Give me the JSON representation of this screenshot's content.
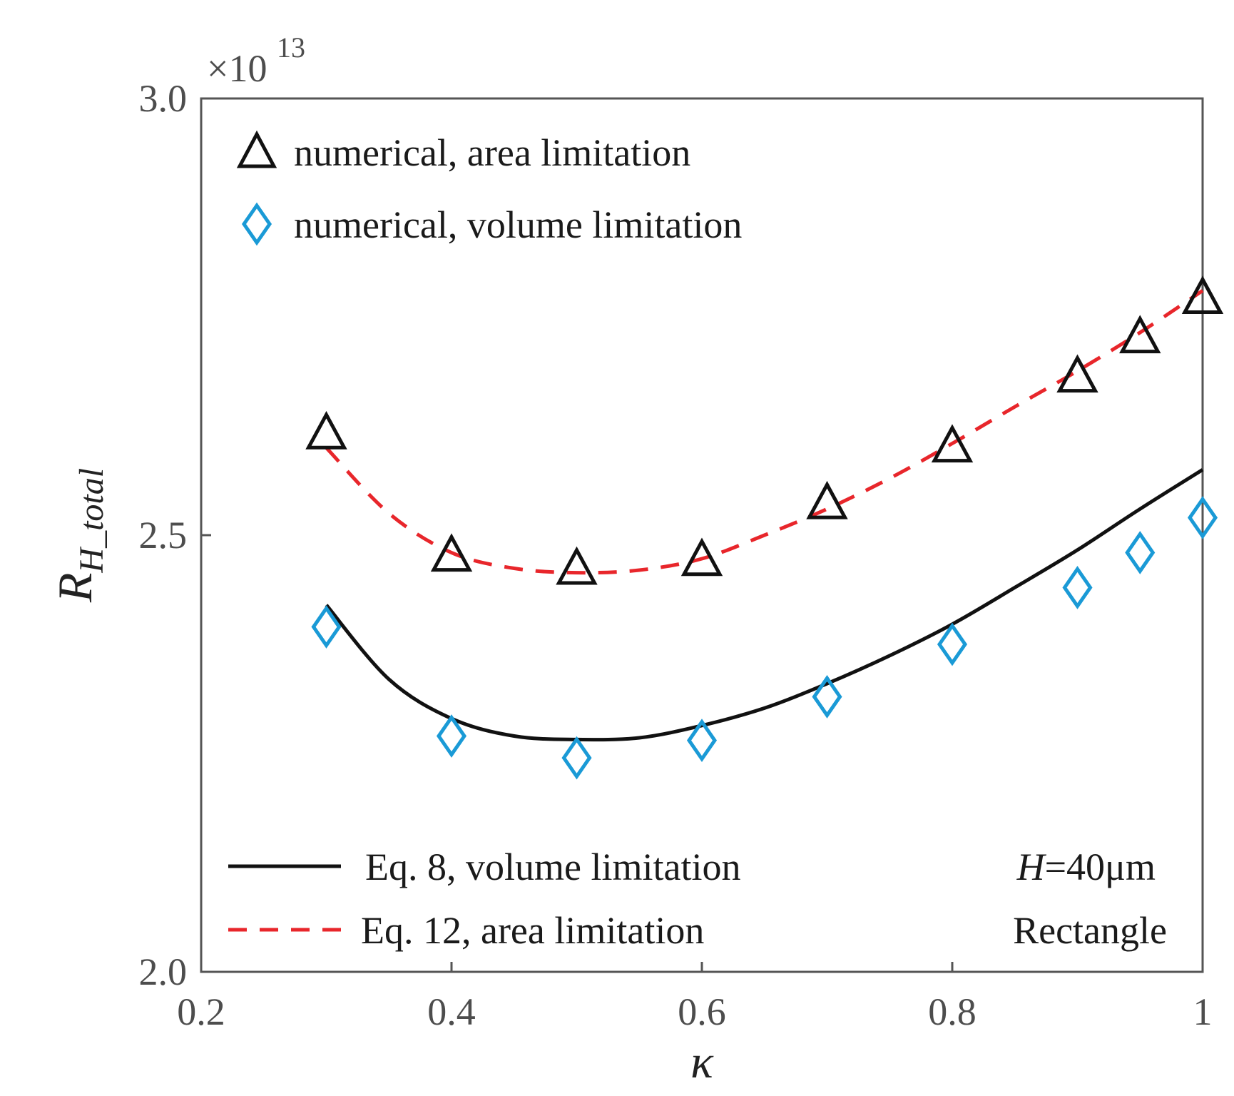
{
  "chart_data": {
    "type": "scatter",
    "title": "",
    "xlabel": "κ",
    "ylabel_main": "R",
    "ylabel_sub": "H_total",
    "exponent_label": "×10",
    "exponent_power": "13",
    "xlim": [
      0.2,
      1.0
    ],
    "ylim": [
      2.0,
      3.0
    ],
    "xticks": [
      0.2,
      0.4,
      0.6,
      0.8,
      1.0
    ],
    "xtick_labels": [
      "0.2",
      "0.4",
      "0.6",
      "0.8",
      "1"
    ],
    "yticks": [
      2.0,
      2.5,
      3.0
    ],
    "ytick_labels": [
      "2.0",
      "2.5",
      "3.0"
    ],
    "grid": false,
    "series": [
      {
        "name": "numerical, area limitation",
        "kind": "markers",
        "marker": "triangle",
        "color": "#111111",
        "x": [
          0.3,
          0.4,
          0.5,
          0.6,
          0.7,
          0.8,
          0.9,
          0.95,
          1.0
        ],
        "y": [
          2.615,
          2.475,
          2.46,
          2.47,
          2.535,
          2.6,
          2.68,
          2.725,
          2.77
        ]
      },
      {
        "name": "numerical, volume limitation",
        "kind": "markers",
        "marker": "diamond",
        "color": "#1a9ad6",
        "x": [
          0.3,
          0.4,
          0.5,
          0.6,
          0.7,
          0.8,
          0.9,
          0.95,
          1.0
        ],
        "y": [
          2.395,
          2.27,
          2.245,
          2.265,
          2.315,
          2.375,
          2.44,
          2.48,
          2.52
        ]
      },
      {
        "name": "Eq. 8, volume limitation",
        "kind": "line",
        "style": "solid",
        "color": "#111111",
        "x": [
          0.3,
          0.35,
          0.4,
          0.45,
          0.5,
          0.55,
          0.6,
          0.65,
          0.7,
          0.75,
          0.8,
          0.85,
          0.9,
          0.95,
          1.0
        ],
        "y": [
          2.42,
          2.335,
          2.29,
          2.27,
          2.266,
          2.268,
          2.282,
          2.302,
          2.33,
          2.362,
          2.398,
          2.44,
          2.483,
          2.53,
          2.575
        ]
      },
      {
        "name": "Eq. 12, area limitation",
        "kind": "line",
        "style": "dashed",
        "color": "#e8262b",
        "x": [
          0.3,
          0.35,
          0.4,
          0.45,
          0.5,
          0.55,
          0.6,
          0.65,
          0.7,
          0.75,
          0.8,
          0.85,
          0.9,
          0.95,
          1.0
        ],
        "y": [
          2.6,
          2.525,
          2.48,
          2.462,
          2.457,
          2.46,
          2.473,
          2.5,
          2.53,
          2.565,
          2.605,
          2.647,
          2.688,
          2.732,
          2.78
        ]
      }
    ],
    "annotation": {
      "h_italic": "H",
      "h_rest": "=40μm",
      "shape": "Rectangle"
    },
    "legend_placement": [
      "top-left",
      "bottom-left"
    ]
  }
}
